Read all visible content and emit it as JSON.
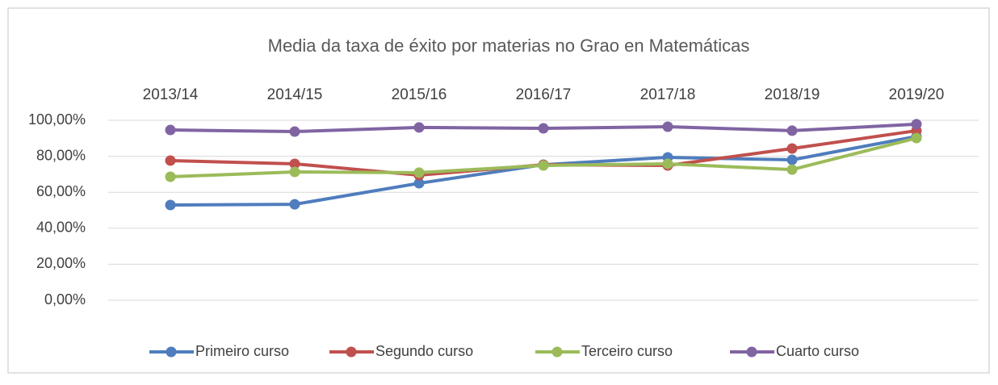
{
  "chart_data": {
    "type": "line",
    "title": "Media da taxa de éxito por materias no Grao en Matemáticas",
    "categories": [
      "2013/14",
      "2014/15",
      "2015/16",
      "2016/17",
      "2017/18",
      "2018/19",
      "2019/20"
    ],
    "series": [
      {
        "name": "Primeiro curso",
        "color": "#4f7dbd",
        "values": [
          52.9,
          53.3,
          65.0,
          75.3,
          79.4,
          78.0,
          91.0
        ]
      },
      {
        "name": "Segundo curso",
        "color": "#c0504d",
        "values": [
          77.6,
          75.8,
          69.5,
          75.3,
          74.9,
          84.3,
          94.2
        ]
      },
      {
        "name": "Terceiro curso",
        "color": "#9bbb59",
        "values": [
          68.6,
          71.3,
          70.9,
          74.9,
          75.8,
          72.6,
          90.1
        ]
      },
      {
        "name": "Cuarto curso",
        "color": "#8064a2",
        "values": [
          94.6,
          93.7,
          96.0,
          95.5,
          96.4,
          94.2,
          97.8
        ]
      }
    ],
    "ylim": [
      0,
      100
    ],
    "yticks": [
      {
        "value": 0,
        "label": "0,00%"
      },
      {
        "value": 20,
        "label": "20,00%"
      },
      {
        "value": 40,
        "label": "40,00%"
      },
      {
        "value": 60,
        "label": "60,00%"
      },
      {
        "value": 80,
        "label": "80,00%"
      },
      {
        "value": 100,
        "label": "100,00%"
      }
    ],
    "grid": true,
    "legend": "bottom"
  }
}
